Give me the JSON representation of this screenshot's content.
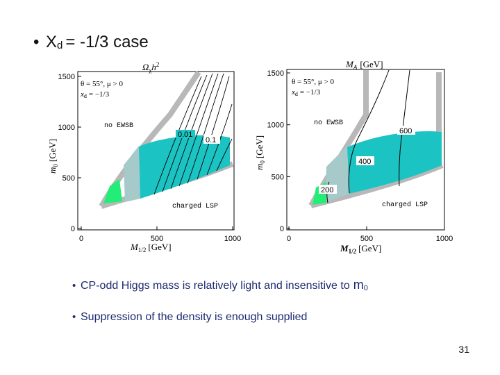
{
  "bullet": "•",
  "header": {
    "title": {
      "main": "X",
      "sub": "d",
      "rest": "= -1/3 case"
    }
  },
  "plots": [
    {
      "top_label": {
        "symbol": "Ω",
        "sub": "χ",
        "rest": "h",
        "sup": "2"
      },
      "x_label": {
        "symbol": "M",
        "sub": "1/2",
        "unit": "[GeV]"
      },
      "y_label": {
        "symbol": "m",
        "sub": "0",
        "unit": "[GeV]"
      },
      "xlim": [
        0,
        1000
      ],
      "ylim": [
        0,
        1500
      ],
      "xticks": [
        0,
        500,
        1000
      ],
      "yticks": [
        0,
        500,
        1000,
        1500
      ],
      "params": [
        "θ = 55°,  μ > 0",
        "x",
        "d",
        "= −1/3"
      ],
      "regions": [
        "no EWSB",
        "charged LSP"
      ],
      "contour_labels": [
        "0.01",
        "0.1"
      ]
    },
    {
      "top_label": {
        "symbol": "M",
        "sub": "A",
        "unit": "[GeV]"
      },
      "x_label": {
        "symbol": "M",
        "sub": "1/2",
        "unit": "[GeV]"
      },
      "y_label": {
        "symbol": "m",
        "sub": "0",
        "unit": "[GeV]"
      },
      "xlim": [
        0,
        1000
      ],
      "ylim": [
        0,
        1500
      ],
      "xticks": [
        0,
        500,
        1000
      ],
      "yticks": [
        0,
        500,
        1000,
        1500
      ],
      "params": [
        "θ = 55°,  μ > 0",
        "x",
        "d",
        "= −1/3"
      ],
      "regions": [
        "no EWSB",
        "charged LSP"
      ],
      "contour_labels": [
        "200",
        "400",
        "600"
      ]
    }
  ],
  "bullets": [
    {
      "text": "CP-odd Higgs mass is relatively light and insensitive to",
      "symbol": "m",
      "sub": "0"
    },
    {
      "text": "Suppression of the density is enough supplied"
    }
  ],
  "page_number": "31"
}
